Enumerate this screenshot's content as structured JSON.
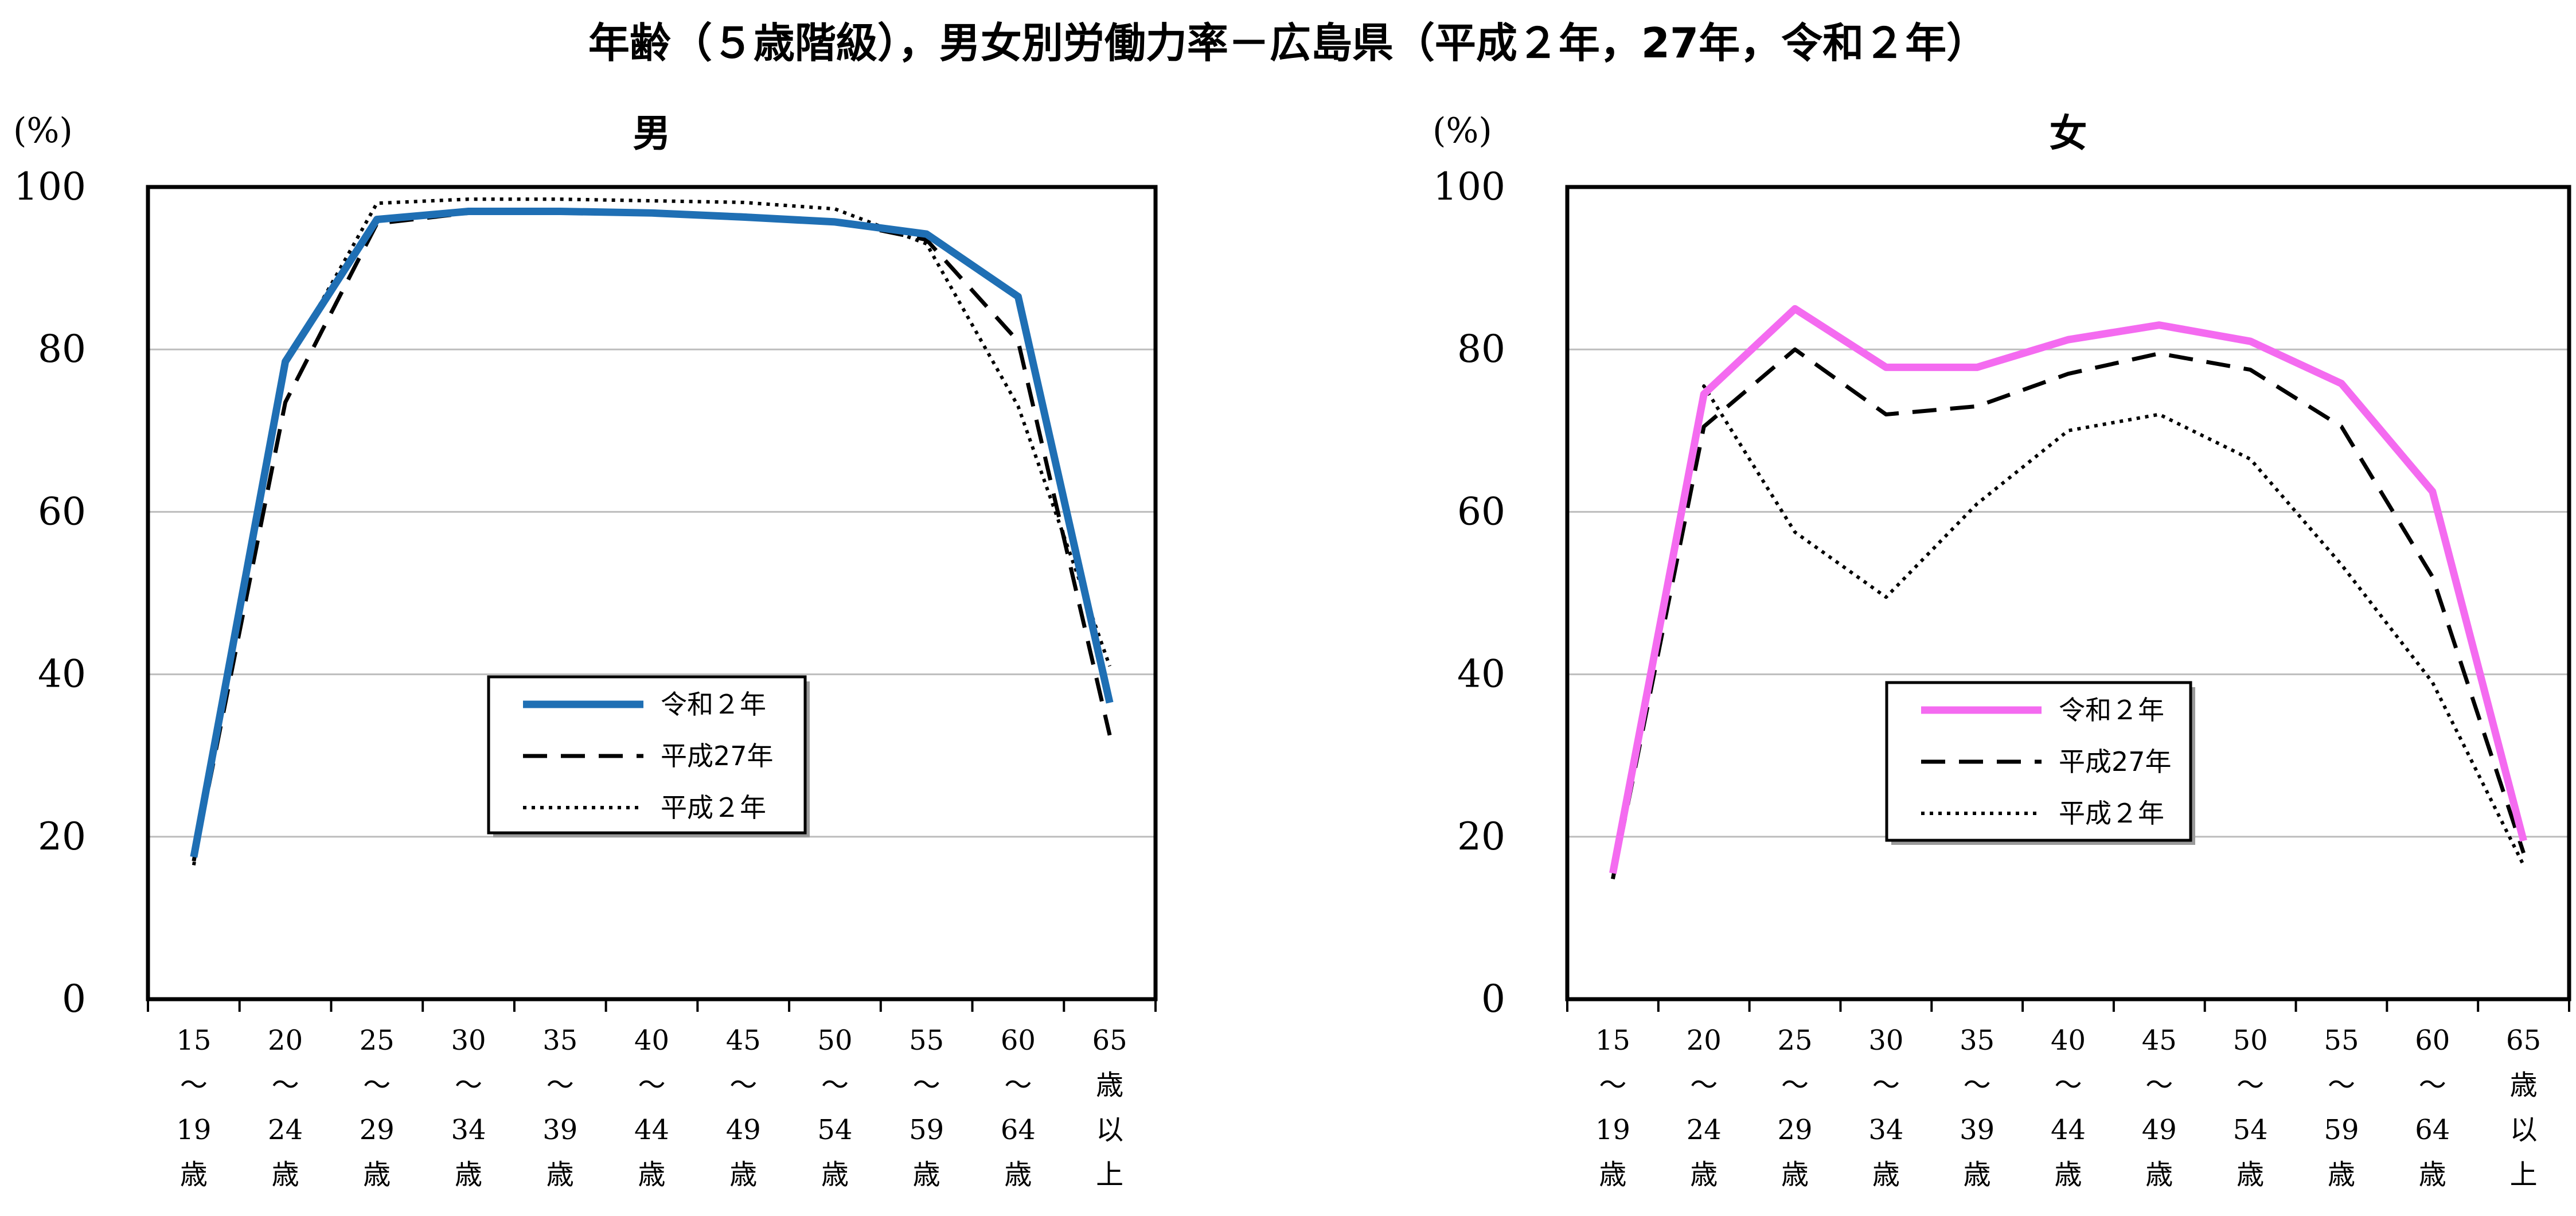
{
  "title": "年齢（５歳階級），男女別労働力率－広島県（平成２年，27年，令和２年）",
  "chart_data": [
    {
      "type": "line",
      "title": "男",
      "ylabel": "(%)",
      "ylim": [
        0,
        100
      ],
      "yticks": [
        "0",
        "20",
        "40",
        "60",
        "80",
        "100"
      ],
      "grid": true,
      "legend_position": "center",
      "categories": [
        [
          "15",
          "〜",
          "19",
          "歳"
        ],
        [
          "20",
          "〜",
          "24",
          "歳"
        ],
        [
          "25",
          "〜",
          "29",
          "歳"
        ],
        [
          "30",
          "〜",
          "34",
          "歳"
        ],
        [
          "35",
          "〜",
          "39",
          "歳"
        ],
        [
          "40",
          "〜",
          "44",
          "歳"
        ],
        [
          "45",
          "〜",
          "49",
          "歳"
        ],
        [
          "50",
          "〜",
          "54",
          "歳"
        ],
        [
          "55",
          "〜",
          "59",
          "歳"
        ],
        [
          "60",
          "〜",
          "64",
          "歳"
        ],
        [
          "65",
          "歳",
          "以",
          "上"
        ]
      ],
      "series": [
        {
          "name": "令和２年",
          "style": "solid",
          "color": "#1F6FB4",
          "values": [
            17.5,
            78.5,
            96.0,
            97.0,
            97.0,
            96.8,
            96.3,
            95.7,
            94.2,
            86.5,
            36.5
          ]
        },
        {
          "name": "平成27年",
          "style": "dashed",
          "color": "#000000",
          "values": [
            17.0,
            73.5,
            95.5,
            96.8,
            97.1,
            96.9,
            96.5,
            95.8,
            93.5,
            81.0,
            32.5
          ]
        },
        {
          "name": "平成２年",
          "style": "dotted",
          "color": "#000000",
          "values": [
            16.5,
            78.0,
            98.0,
            98.5,
            98.5,
            98.3,
            98.1,
            97.3,
            93.0,
            73.0,
            41.0
          ]
        }
      ]
    },
    {
      "type": "line",
      "title": "女",
      "ylabel": "(%)",
      "ylim": [
        0,
        100
      ],
      "yticks": [
        "0",
        "20",
        "40",
        "60",
        "80",
        "100"
      ],
      "grid": true,
      "legend_position": "center",
      "categories": [
        [
          "15",
          "〜",
          "19",
          "歳"
        ],
        [
          "20",
          "〜",
          "24",
          "歳"
        ],
        [
          "25",
          "〜",
          "29",
          "歳"
        ],
        [
          "30",
          "〜",
          "34",
          "歳"
        ],
        [
          "35",
          "〜",
          "39",
          "歳"
        ],
        [
          "40",
          "〜",
          "44",
          "歳"
        ],
        [
          "45",
          "〜",
          "49",
          "歳"
        ],
        [
          "50",
          "〜",
          "54",
          "歳"
        ],
        [
          "55",
          "〜",
          "59",
          "歳"
        ],
        [
          "60",
          "〜",
          "64",
          "歳"
        ],
        [
          "65",
          "歳",
          "以",
          "上"
        ]
      ],
      "series": [
        {
          "name": "令和２年",
          "style": "solid",
          "color": "#F46BF0",
          "values": [
            15.5,
            74.5,
            85.0,
            77.8,
            77.8,
            81.2,
            83.0,
            81.0,
            75.8,
            62.5,
            19.5
          ]
        },
        {
          "name": "平成27年",
          "style": "dashed",
          "color": "#000000",
          "values": [
            14.8,
            70.5,
            80.0,
            72.0,
            73.0,
            77.0,
            79.5,
            77.5,
            70.5,
            52.0,
            18.0
          ]
        },
        {
          "name": "平成２年",
          "style": "dotted",
          "color": "#000000",
          "values": [
            16.0,
            75.5,
            57.5,
            49.5,
            61.0,
            70.0,
            72.0,
            66.5,
            53.5,
            39.0,
            16.5
          ]
        }
      ]
    }
  ]
}
